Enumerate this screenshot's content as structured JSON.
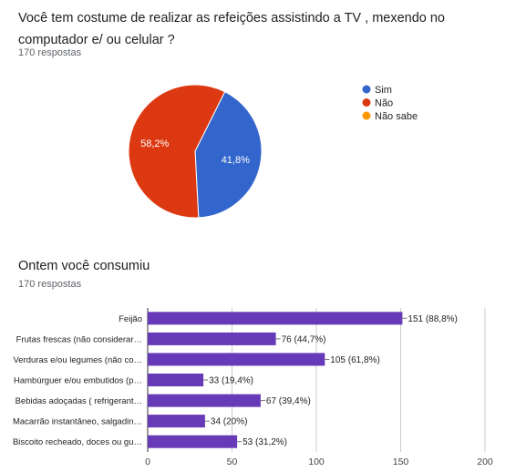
{
  "question1": {
    "title": "Você tem costume de realizar as refeições assistindo a TV , mexendo no computador e/ ou celular ?",
    "responses": "170 respostas"
  },
  "question2": {
    "title": "Ontem você consumiu",
    "responses": "170 respostas"
  },
  "chart_data": [
    {
      "type": "pie",
      "slices": [
        {
          "label": "Sim",
          "value": 41.8,
          "display": "41,8%",
          "color": "#3366cc"
        },
        {
          "label": "Não",
          "value": 58.2,
          "display": "58,2%",
          "color": "#dc3912"
        },
        {
          "label": "Não sabe",
          "value": 0,
          "display": "",
          "color": "#ff9900"
        }
      ],
      "legend": "right"
    },
    {
      "type": "bar",
      "orientation": "horizontal",
      "color": "#673ab7",
      "categories": [
        "Feijão",
        "Frutas frescas (não considerar…",
        "Verduras e/ou legumes (não co…",
        "Hambúrguer e/ou embutidos (p…",
        "Bebidas adoçadas ( refrigerant…",
        "Macarrão instantâneo, salgadin…",
        "Biscoito recheado, doces ou gu…"
      ],
      "values": [
        151,
        76,
        105,
        33,
        67,
        34,
        53
      ],
      "labels": [
        "151 (88,8%)",
        "76 (44,7%)",
        "105 (61,8%)",
        "33 (19,4%)",
        "67 (39,4%)",
        "34 (20%)",
        "53 (31,2%)"
      ],
      "xlim": [
        0,
        200
      ],
      "xticks": [
        "0",
        "50",
        "100",
        "150",
        "200"
      ],
      "grid": true
    }
  ]
}
